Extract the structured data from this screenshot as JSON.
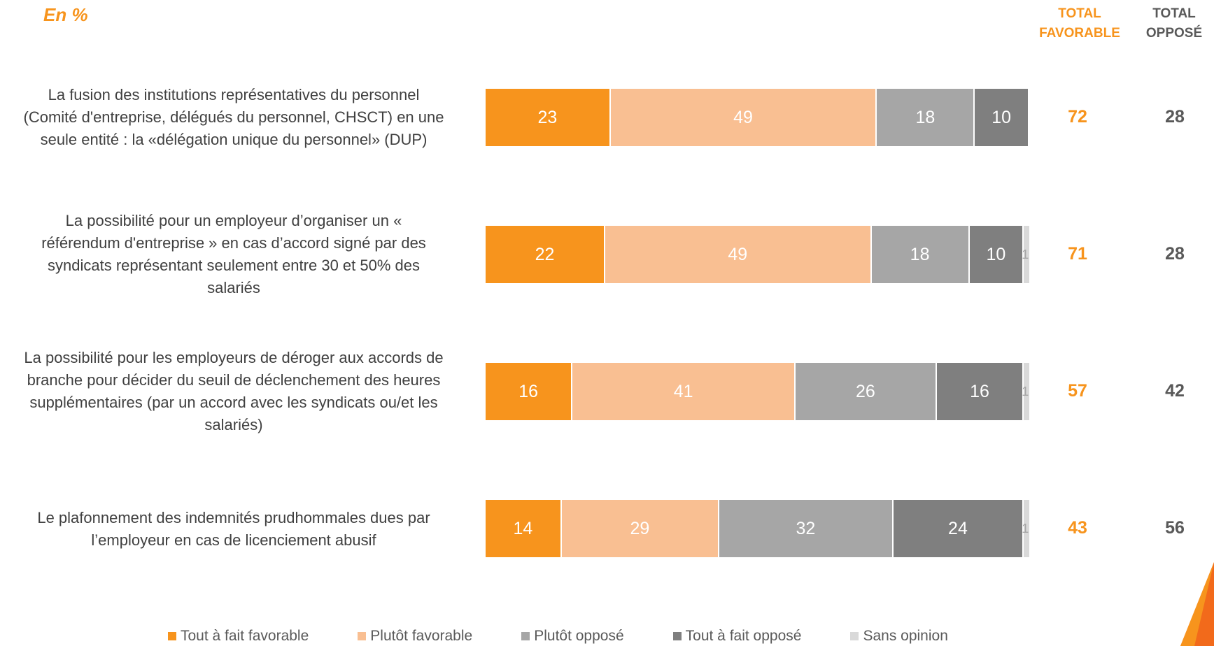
{
  "unit_label": "En  %",
  "headers": {
    "fav_line1": "TOTAL",
    "fav_line2": "FAVORABLE",
    "opp_line1": "TOTAL",
    "opp_line2": "OPPOSÉ"
  },
  "colors": {
    "tout_a_fait_favorable": "#F7941D",
    "plutot_favorable": "#F9BF92",
    "plutot_oppose": "#A6A6A6",
    "tout_a_fait_oppose": "#7F7F7F",
    "sans_opinion": "#D9D9D9"
  },
  "chart_data": {
    "type": "bar",
    "stacked": true,
    "orientation": "horizontal",
    "title": "",
    "unit": "En  %",
    "categories": [
      "La fusion des institutions représentatives du personnel (Comité d'entreprise, délégués du personnel, CHSCT) en une seule entité : la «délégation unique du personnel» (DUP)",
      "La possibilité pour un employeur d’organiser un « référendum d'entreprise » en cas d’accord signé par des syndicats représentant seulement entre 30 et 50% des salariés",
      "La possibilité pour les employeurs de déroger aux accords de branche pour décider du seuil de déclenchement des heures supplémentaires (par un accord avec les syndicats ou/et les salariés)",
      "Le plafonnement des indemnités prudhommales dues par l’employeur en cas de licenciement abusif"
    ],
    "series": [
      {
        "name": "Tout à fait favorable",
        "values": [
          23,
          22,
          16,
          14
        ]
      },
      {
        "name": "Plutôt favorable",
        "values": [
          49,
          49,
          41,
          29
        ]
      },
      {
        "name": "Plutôt opposé",
        "values": [
          18,
          18,
          26,
          32
        ]
      },
      {
        "name": "Tout à fait opposé",
        "values": [
          10,
          10,
          16,
          24
        ]
      },
      {
        "name": "Sans opinion",
        "values": [
          0,
          1,
          1,
          1
        ]
      }
    ],
    "data_labels": [
      [
        "23",
        "49",
        "18",
        "10",
        ""
      ],
      [
        "22",
        "49",
        "18",
        "10",
        "1"
      ],
      [
        "16",
        "41",
        "26",
        "16",
        "1"
      ],
      [
        "14",
        "29",
        "32",
        "24",
        "1"
      ]
    ],
    "total_favorable": [
      "72",
      "71",
      "57",
      "43"
    ],
    "total_oppose": [
      "28",
      "28",
      "42",
      "56"
    ],
    "xlim": [
      0,
      100
    ],
    "legend_position": "bottom",
    "grid": false
  },
  "rows": [
    {
      "label_lines": [
        "La fusion des institutions représentatives du personnel",
        "(Comité d'entreprise, délégués du personnel, CHSCT) en une",
        "seule entité : la «délégation unique du personnel» (DUP)"
      ]
    },
    {
      "label_lines": [
        "La possibilité pour un employeur d’organiser un «",
        "référendum d'entreprise » en cas d’accord signé par des",
        "syndicats représentant seulement entre 30 et 50% des",
        "salariés"
      ]
    },
    {
      "label_lines": [
        "La possibilité pour les employeurs de déroger aux accords de",
        "branche pour décider du seuil de déclenchement des heures",
        "supplémentaires (par un accord avec les syndicats ou/et les",
        "salariés)"
      ]
    },
    {
      "label_lines": [
        "Le plafonnement des indemnités prudhommales dues par",
        "l’employeur en cas de licenciement abusif"
      ]
    }
  ]
}
